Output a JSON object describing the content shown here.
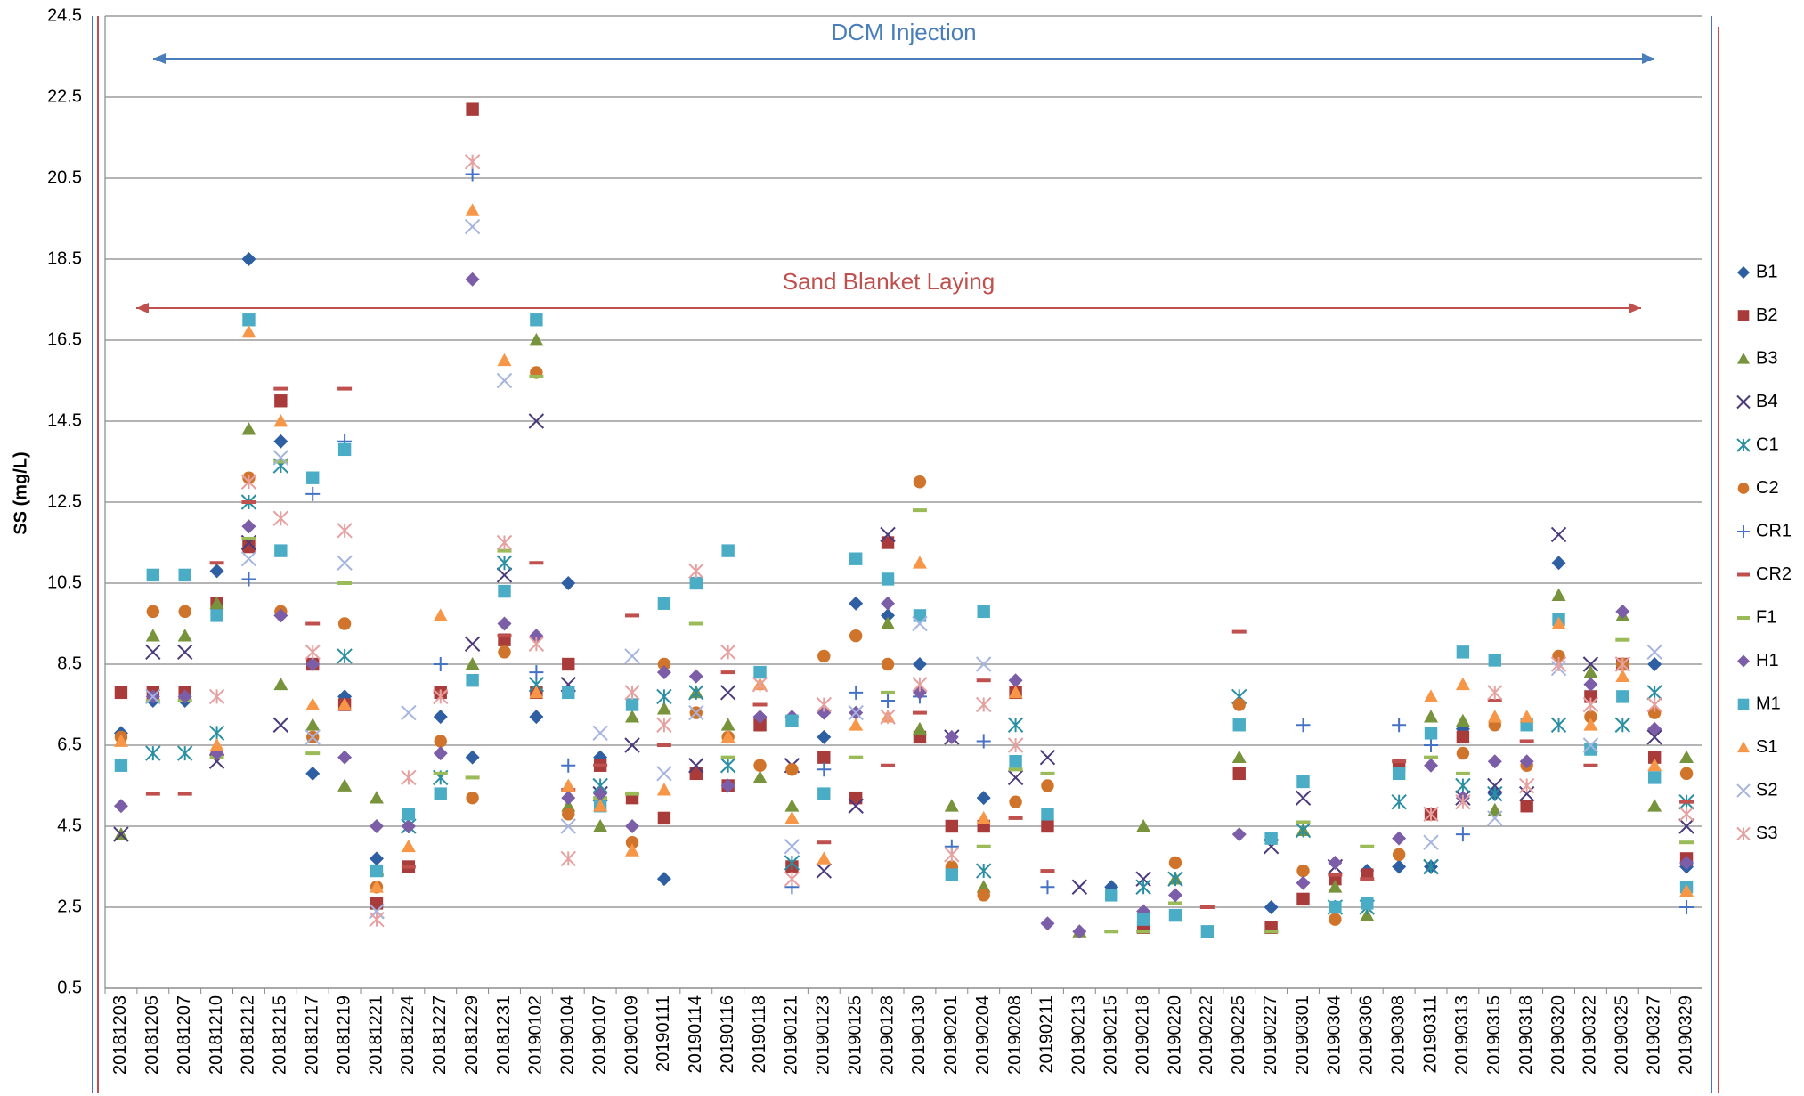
{
  "chart_data": {
    "type": "scatter",
    "y_label": "SS (mg/L)",
    "annotations": [
      {
        "text": "DCM Injection",
        "color": "#4a7ebb"
      },
      {
        "text": "Sand Blanket Laying",
        "color": "#c0504d"
      }
    ],
    "ylim": [
      0.5,
      24.5
    ],
    "yticks": [
      0.5,
      2.5,
      4.5,
      6.5,
      8.5,
      10.5,
      12.5,
      14.5,
      16.5,
      18.5,
      20.5,
      22.5,
      24.5
    ],
    "grid": true,
    "categories": [
      "20181203",
      "20181205",
      "20181207",
      "20181210",
      "20181212",
      "20181215",
      "20181217",
      "20181219",
      "20181221",
      "20181224",
      "20181227",
      "20181229",
      "20181231",
      "20190102",
      "20190104",
      "20190107",
      "20190109",
      "20190111",
      "20190114",
      "20190116",
      "20190118",
      "20190121",
      "20190123",
      "20190125",
      "20190128",
      "20190130",
      "20190201",
      "20190204",
      "20190208",
      "20190211",
      "20190213",
      "20190215",
      "20190218",
      "20190220",
      "20190222",
      "20190225",
      "20190227",
      "20190301",
      "20190304",
      "20190306",
      "20190308",
      "20190311",
      "20190313",
      "20190315",
      "20190318",
      "20190320",
      "20190322",
      "20190325",
      "20190327",
      "20190329"
    ],
    "series": [
      {
        "name": "B1",
        "color": "#2e5fa3",
        "marker": "diamond",
        "values": [
          6.8,
          7.6,
          7.6,
          10.8,
          18.5,
          14.0,
          5.8,
          7.7,
          3.7,
          4.5,
          7.2,
          6.2,
          null,
          7.2,
          10.5,
          6.2,
          null,
          3.2,
          null,
          null,
          null,
          null,
          6.7,
          10.0,
          9.7,
          8.5,
          null,
          5.2,
          null,
          null,
          null,
          3.0,
          null,
          null,
          null,
          null,
          2.5,
          null,
          null,
          3.4,
          3.5,
          3.5,
          6.9,
          5.3,
          null,
          11.0,
          null,
          null,
          8.5,
          3.5
        ]
      },
      {
        "name": "B2",
        "color": "#a93b3b",
        "marker": "square",
        "values": [
          7.8,
          7.8,
          7.8,
          10.0,
          11.4,
          15.0,
          8.5,
          7.5,
          2.6,
          3.5,
          7.8,
          22.2,
          9.1,
          7.8,
          8.5,
          6.0,
          5.2,
          4.7,
          5.8,
          5.5,
          7.0,
          3.5,
          6.2,
          5.2,
          11.5,
          6.7,
          4.5,
          4.5,
          7.8,
          4.5,
          null,
          null,
          2.0,
          null,
          null,
          5.8,
          2.0,
          2.7,
          3.2,
          3.3,
          6.0,
          4.8,
          6.7,
          null,
          5.0,
          null,
          7.7,
          8.5,
          6.2,
          3.7
        ]
      },
      {
        "name": "B3",
        "color": "#77933c",
        "marker": "triangle",
        "values": [
          4.3,
          9.2,
          9.2,
          10.0,
          14.3,
          8.0,
          7.0,
          5.5,
          5.2,
          null,
          null,
          8.5,
          null,
          16.5,
          5.0,
          4.5,
          7.2,
          7.4,
          7.8,
          7.0,
          5.7,
          5.0,
          null,
          null,
          9.5,
          6.9,
          5.0,
          3.0,
          null,
          null,
          1.9,
          null,
          4.5,
          3.2,
          null,
          6.2,
          null,
          4.4,
          3.0,
          2.3,
          null,
          7.2,
          7.1,
          4.9,
          null,
          10.2,
          8.3,
          9.7,
          5.0,
          6.2
        ]
      },
      {
        "name": "B4",
        "color": "#4b3a7c",
        "marker": "x",
        "values": [
          4.3,
          8.8,
          8.8,
          6.1,
          11.5,
          7.0,
          null,
          null,
          2.4,
          null,
          null,
          9.0,
          10.7,
          14.5,
          8.0,
          5.3,
          6.5,
          null,
          6.0,
          7.8,
          null,
          6.0,
          3.4,
          5.0,
          11.7,
          null,
          6.7,
          null,
          5.7,
          6.2,
          3.0,
          null,
          3.2,
          null,
          null,
          null,
          4.0,
          5.2,
          3.5,
          null,
          null,
          3.5,
          5.2,
          5.5,
          5.3,
          11.7,
          8.5,
          null,
          6.7,
          4.5
        ]
      },
      {
        "name": "C1",
        "color": "#2a8fa3",
        "marker": "asterisk",
        "values": [
          null,
          6.3,
          6.3,
          6.8,
          12.5,
          13.4,
          null,
          8.7,
          null,
          4.5,
          5.7,
          null,
          11.0,
          8.0,
          null,
          5.5,
          null,
          7.7,
          7.8,
          6.0,
          null,
          3.6,
          null,
          null,
          null,
          null,
          null,
          3.4,
          7.0,
          null,
          null,
          null,
          3.0,
          3.2,
          null,
          7.7,
          null,
          4.4,
          2.5,
          2.5,
          5.1,
          3.5,
          5.5,
          5.3,
          null,
          7.0,
          null,
          7.0,
          7.8,
          5.1
        ]
      },
      {
        "name": "C2",
        "color": "#d0742b",
        "marker": "circle",
        "values": [
          6.7,
          9.8,
          9.8,
          6.3,
          13.1,
          9.8,
          6.7,
          9.5,
          3.0,
          null,
          6.6,
          5.2,
          8.8,
          15.7,
          4.8,
          null,
          4.1,
          8.5,
          7.3,
          6.7,
          6.0,
          5.9,
          8.7,
          9.2,
          8.5,
          13.0,
          3.5,
          2.8,
          5.1,
          5.5,
          null,
          null,
          null,
          3.6,
          null,
          7.5,
          null,
          3.4,
          2.2,
          null,
          3.8,
          null,
          6.3,
          7.0,
          6.0,
          8.7,
          7.2,
          8.5,
          7.3,
          5.8
        ]
      },
      {
        "name": "CR1",
        "color": "#4472c4",
        "marker": "plus",
        "values": [
          null,
          null,
          null,
          null,
          10.6,
          null,
          12.7,
          14.0,
          null,
          null,
          8.5,
          20.6,
          null,
          8.3,
          6.0,
          null,
          null,
          null,
          null,
          null,
          null,
          3.0,
          5.9,
          7.8,
          7.6,
          7.7,
          4.0,
          6.6,
          null,
          3.0,
          null,
          null,
          null,
          null,
          null,
          null,
          null,
          7.0,
          null,
          null,
          7.0,
          6.5,
          4.3,
          null,
          null,
          null,
          null,
          null,
          null,
          2.5
        ]
      },
      {
        "name": "CR2",
        "color": "#c0504d",
        "marker": "dash",
        "values": [
          null,
          5.3,
          5.3,
          11.0,
          12.5,
          15.3,
          9.5,
          15.3,
          null,
          3.5,
          7.8,
          null,
          9.2,
          11.0,
          5.4,
          6.0,
          9.7,
          6.5,
          null,
          8.3,
          7.5,
          null,
          4.1,
          null,
          6.0,
          7.3,
          null,
          8.1,
          4.7,
          3.4,
          null,
          null,
          null,
          null,
          2.5,
          9.3,
          null,
          null,
          3.3,
          3.2,
          6.1,
          null,
          null,
          7.6,
          6.6,
          null,
          6.0,
          null,
          null,
          5.1
        ]
      },
      {
        "name": "F1",
        "color": "#9bbb59",
        "marker": "dash",
        "values": [
          null,
          7.6,
          7.6,
          6.2,
          11.6,
          13.5,
          6.3,
          10.5,
          3.3,
          null,
          5.8,
          5.7,
          11.3,
          15.6,
          null,
          5.2,
          5.3,
          null,
          9.5,
          6.2,
          null,
          null,
          null,
          6.2,
          7.8,
          12.3,
          null,
          4.0,
          5.9,
          5.8,
          null,
          1.9,
          1.9,
          2.6,
          null,
          null,
          1.9,
          4.6,
          null,
          4.0,
          null,
          6.2,
          5.8,
          null,
          null,
          null,
          null,
          9.1,
          null,
          4.1
        ]
      },
      {
        "name": "H1",
        "color": "#7b5ea7",
        "marker": "diamond",
        "values": [
          5.0,
          7.7,
          7.7,
          6.3,
          11.9,
          9.7,
          8.5,
          6.2,
          4.5,
          4.5,
          6.3,
          18.0,
          9.5,
          9.2,
          5.2,
          5.3,
          4.5,
          8.3,
          8.2,
          5.5,
          7.2,
          7.2,
          7.3,
          7.3,
          10.0,
          7.8,
          6.7,
          null,
          8.1,
          2.1,
          1.9,
          null,
          2.4,
          2.8,
          null,
          4.3,
          null,
          3.1,
          3.6,
          null,
          4.2,
          6.0,
          5.2,
          6.1,
          6.1,
          null,
          8.0,
          9.8,
          6.9,
          3.6
        ]
      },
      {
        "name": "M1",
        "color": "#4bacc6",
        "marker": "square",
        "values": [
          6.0,
          10.7,
          10.7,
          9.7,
          17.0,
          11.3,
          13.1,
          13.8,
          3.4,
          4.8,
          5.3,
          8.1,
          10.3,
          17.0,
          7.8,
          5.0,
          7.5,
          10.0,
          10.5,
          11.3,
          8.3,
          7.1,
          5.3,
          11.1,
          10.6,
          9.7,
          3.3,
          9.8,
          6.1,
          4.8,
          null,
          2.8,
          2.2,
          2.3,
          1.9,
          7.0,
          4.2,
          5.6,
          2.5,
          2.6,
          5.8,
          6.8,
          8.8,
          8.6,
          7.0,
          9.6,
          6.4,
          7.7,
          5.7,
          3.0
        ]
      },
      {
        "name": "S1",
        "color": "#f79646",
        "marker": "triangle",
        "values": [
          6.6,
          null,
          null,
          6.5,
          16.7,
          14.5,
          7.5,
          7.5,
          3.0,
          4.0,
          9.7,
          19.7,
          16.0,
          7.8,
          5.5,
          5.0,
          3.9,
          5.4,
          null,
          6.7,
          8.0,
          4.7,
          3.7,
          7.0,
          7.2,
          11.0,
          null,
          4.7,
          7.8,
          null,
          null,
          null,
          null,
          null,
          null,
          null,
          null,
          null,
          null,
          null,
          null,
          7.7,
          8.0,
          7.2,
          7.2,
          9.5,
          7.0,
          8.2,
          6.0,
          2.9
        ]
      },
      {
        "name": "S2",
        "color": "#a5b5e0",
        "marker": "x",
        "values": [
          null,
          7.7,
          null,
          null,
          11.1,
          13.6,
          6.7,
          11.0,
          2.4,
          7.3,
          null,
          19.3,
          15.5,
          null,
          4.5,
          6.8,
          8.7,
          5.8,
          7.3,
          null,
          null,
          4.0,
          null,
          7.3,
          null,
          9.5,
          null,
          8.5,
          null,
          null,
          null,
          null,
          null,
          null,
          null,
          null,
          null,
          null,
          null,
          null,
          null,
          4.1,
          null,
          4.7,
          null,
          8.4,
          6.5,
          null,
          8.8,
          null
        ]
      },
      {
        "name": "S3",
        "color": "#e6a0a0",
        "marker": "asterisk",
        "values": [
          null,
          null,
          null,
          7.7,
          13.0,
          12.1,
          8.8,
          11.8,
          2.2,
          5.7,
          7.7,
          20.9,
          11.5,
          9.0,
          3.7,
          null,
          7.8,
          7.0,
          10.8,
          8.8,
          8.0,
          3.2,
          7.5,
          null,
          7.2,
          8.0,
          3.8,
          7.5,
          6.5,
          null,
          null,
          null,
          null,
          null,
          null,
          null,
          null,
          null,
          null,
          null,
          null,
          4.8,
          5.1,
          7.8,
          5.5,
          8.5,
          7.5,
          8.5,
          7.5,
          4.8
        ]
      }
    ]
  }
}
